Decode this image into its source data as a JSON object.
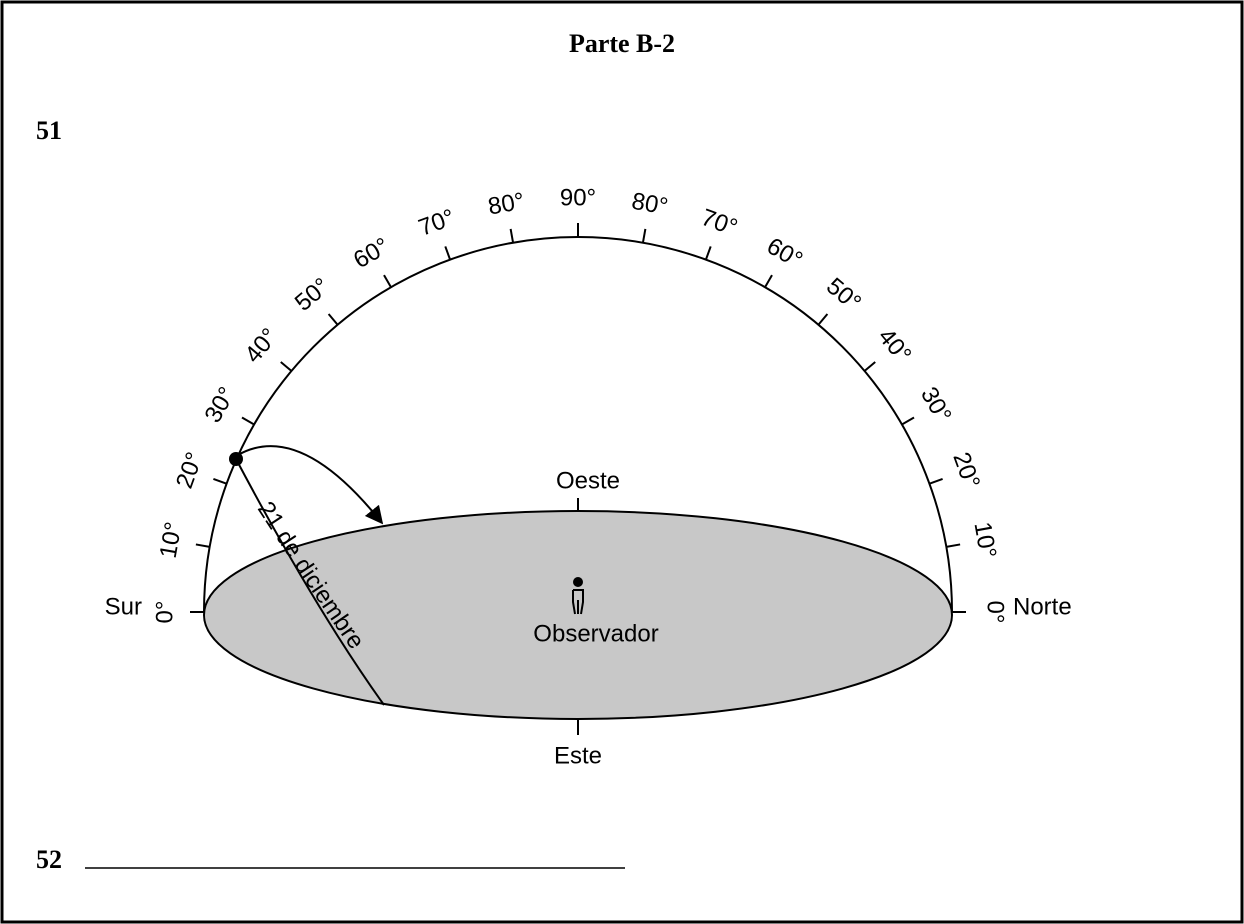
{
  "header": {
    "title": "Parte B-2"
  },
  "questions": [
    "51",
    "52"
  ],
  "diagram": {
    "scale": {
      "left": [
        "0°",
        "10°",
        "20°",
        "30°",
        "40°",
        "50°",
        "60°",
        "70°",
        "80°"
      ],
      "top": "90°",
      "right": [
        "0°",
        "10°",
        "20°",
        "30°",
        "40°",
        "50°",
        "60°",
        "70°",
        "80°"
      ]
    },
    "directions": {
      "south": "Sur",
      "north": "Norte",
      "west": "Oeste",
      "east": "Este"
    },
    "observer": "Observador",
    "path_label": "21 de diciembre"
  }
}
